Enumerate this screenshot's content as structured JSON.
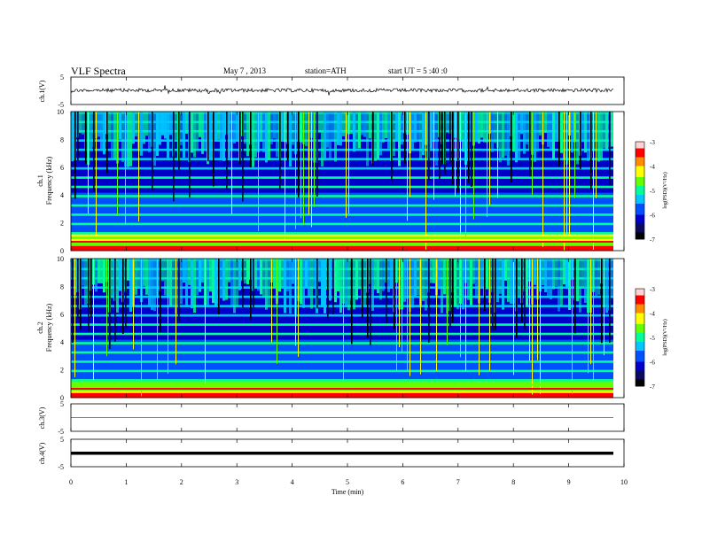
{
  "header": {
    "title": "VLF  Spectra",
    "date": "May 7  , 2013",
    "station": "station=ATH",
    "start": "start  UT  =   5  :40 :0"
  },
  "chart_data": [
    {
      "type": "line",
      "id": "ch1_waveform",
      "ylabel": "ch.1(V)",
      "ylim": [
        -5,
        5
      ],
      "yticks": [
        "5",
        "-5"
      ],
      "xlim": [
        0,
        10
      ],
      "baseline": 0,
      "series_color": "#000000"
    },
    {
      "type": "heatmap",
      "id": "ch1_spectrogram",
      "ylabel": "ch.1\nFrequency  (kHz)",
      "ylim": [
        0,
        10
      ],
      "yticks": [
        "0",
        "2",
        "4",
        "6",
        "8",
        "10"
      ],
      "xlim": [
        0,
        9.8
      ],
      "colorbar": {
        "label": "log(PSD)(V²/Hz)",
        "range": [
          -7,
          -3
        ],
        "ticks": [
          "-3",
          "-4",
          "-5",
          "-6",
          "-7"
        ]
      }
    },
    {
      "type": "heatmap",
      "id": "ch2_spectrogram",
      "ylabel": "ch.2\nFrequency  (kHz)",
      "ylim": [
        0,
        10
      ],
      "yticks": [
        "0",
        "2",
        "4",
        "6",
        "8",
        "10"
      ],
      "xlim": [
        0,
        9.8
      ],
      "colorbar": {
        "label": "log(PSD)(V²/Hz)",
        "range": [
          -7,
          -3
        ],
        "ticks": [
          "-3",
          "-4",
          "-5",
          "-6",
          "-7"
        ]
      }
    },
    {
      "type": "line",
      "id": "ch3_waveform",
      "ylabel": "ch.3(V)",
      "ylim": [
        -5,
        5
      ],
      "yticks": [
        "5",
        "-5"
      ],
      "baseline": 0
    },
    {
      "type": "line",
      "id": "ch4_waveform",
      "ylabel": "ch.4(V)",
      "ylim": [
        -5,
        5
      ],
      "yticks": [
        "5",
        "-5"
      ],
      "baseline": 0
    }
  ],
  "xaxis": {
    "label": "Time  (min)",
    "ticks": [
      "0",
      "1",
      "2",
      "3",
      "4",
      "5",
      "6",
      "7",
      "8",
      "9",
      "10"
    ],
    "range": [
      0,
      10
    ]
  },
  "colors": {
    "background": "#ffffff",
    "colormap": [
      "#000000",
      "#0a0a5e",
      "#0000c8",
      "#0050ff",
      "#00c8ff",
      "#00ff96",
      "#64ff00",
      "#ffff00",
      "#ff8c00",
      "#ff0000",
      "#ffd2d2"
    ]
  }
}
